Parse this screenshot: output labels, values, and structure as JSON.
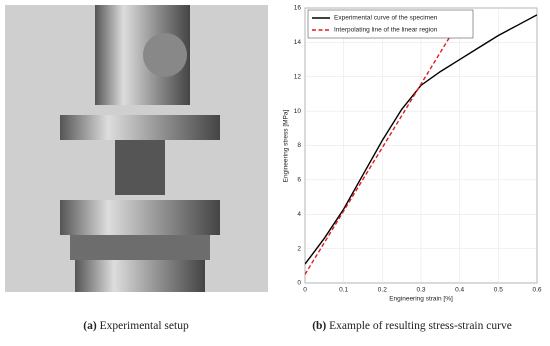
{
  "captions": [
    {
      "label": "(a)",
      "text": "Experimental setup"
    },
    {
      "label": "(b)",
      "text": "Example of resulting stress-strain curve"
    }
  ],
  "chart_data": {
    "type": "line",
    "xlabel": "Engineering strain [%]",
    "ylabel": "Engineering stress [MPa]",
    "xlim": [
      0,
      0.6
    ],
    "ylim": [
      0,
      16
    ],
    "xticks": [
      0,
      0.1,
      0.2,
      0.3,
      0.4,
      0.5,
      0.6
    ],
    "yticks": [
      0,
      2,
      4,
      6,
      8,
      10,
      12,
      14,
      16
    ],
    "grid": true,
    "legend": "upper-left",
    "series": [
      {
        "name": "Experimental curve of the specimen",
        "color": "#000000",
        "dash": false,
        "x": [
          0,
          0.05,
          0.1,
          0.15,
          0.2,
          0.25,
          0.3,
          0.35,
          0.4,
          0.45,
          0.5,
          0.55,
          0.6
        ],
        "values": [
          1.1,
          2.6,
          4.3,
          6.3,
          8.3,
          10.1,
          11.5,
          12.3,
          13.0,
          13.7,
          14.4,
          15.0,
          15.6
        ]
      },
      {
        "name": "Interpolating line of the linear region",
        "color": "#e41a1c",
        "dash": true,
        "x": [
          0,
          0.42
        ],
        "values": [
          0.5,
          16
        ]
      }
    ]
  }
}
